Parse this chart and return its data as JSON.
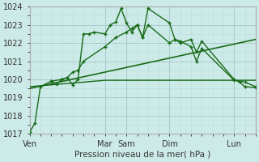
{
  "bg_color": "#cceae7",
  "grid_color_major": "#aacccc",
  "grid_color_minor": "#bbdcdc",
  "line_color": "#1a6b1a",
  "ylim": [
    1017,
    1024
  ],
  "yticks": [
    1017,
    1018,
    1019,
    1020,
    1021,
    1022,
    1023,
    1024
  ],
  "xlabel": "Pression niveau de la mer( hPa )",
  "day_labels": [
    "Ven",
    "Mar",
    "Sam",
    "Dim",
    "Lun"
  ],
  "day_x": [
    0,
    14,
    18,
    26,
    38
  ],
  "xlim": [
    0,
    42
  ],
  "line1_x": [
    0,
    1,
    2,
    4,
    5,
    6,
    7,
    8,
    9,
    10,
    11,
    12,
    14,
    15,
    16,
    17,
    18,
    19,
    20,
    21,
    22,
    26,
    27,
    28,
    30,
    31,
    32,
    38,
    39,
    40,
    42
  ],
  "line1_y": [
    1017.1,
    1017.6,
    1019.6,
    1019.9,
    1019.75,
    1020.0,
    1020.1,
    1019.7,
    1020.0,
    1022.5,
    1022.5,
    1022.6,
    1022.5,
    1023.0,
    1023.15,
    1023.9,
    1023.1,
    1022.6,
    1023.0,
    1022.3,
    1023.9,
    1023.1,
    1022.2,
    1022.0,
    1022.2,
    1021.5,
    1022.1,
    1020.0,
    1019.85,
    1019.6,
    1019.55
  ],
  "line2_x": [
    4,
    6,
    7,
    8,
    9,
    10,
    14,
    16,
    18,
    19,
    20,
    21,
    22,
    26,
    27,
    28,
    30,
    31,
    32,
    38,
    40,
    42
  ],
  "line2_y": [
    1019.9,
    1020.0,
    1020.1,
    1020.4,
    1020.5,
    1021.0,
    1021.8,
    1022.3,
    1022.6,
    1022.8,
    1023.0,
    1022.3,
    1023.0,
    1022.0,
    1022.2,
    1022.1,
    1021.8,
    1021.0,
    1021.7,
    1019.95,
    1019.85,
    1019.6
  ],
  "line3_x": [
    0,
    14,
    26,
    42
  ],
  "line3_y": [
    1019.6,
    1019.95,
    1019.95,
    1019.95
  ],
  "line4_x": [
    0,
    42
  ],
  "line4_y": [
    1019.5,
    1022.2
  ]
}
